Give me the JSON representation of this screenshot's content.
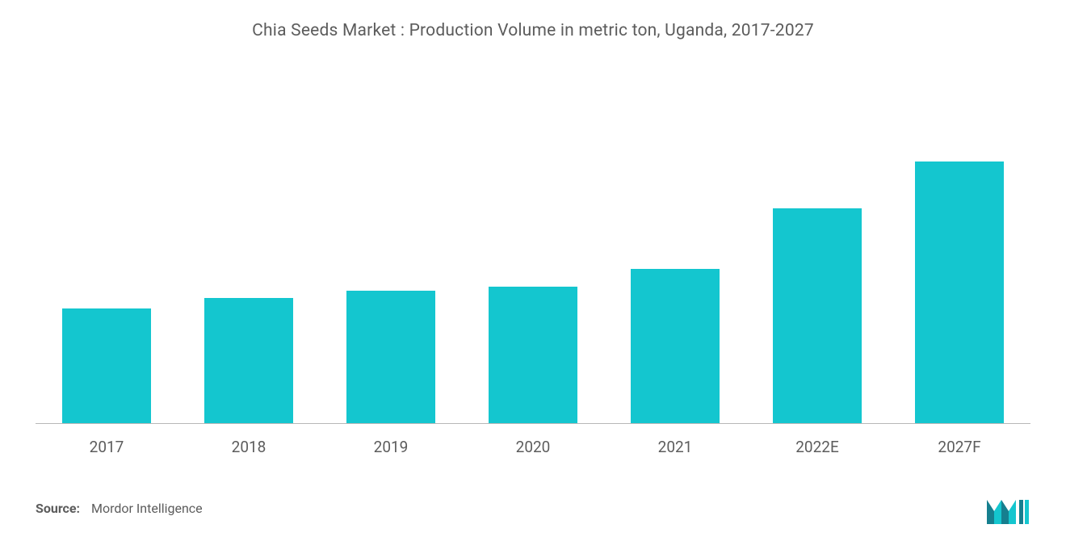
{
  "chart": {
    "type": "bar",
    "title": "Chia Seeds Market : Production Volume in metric ton, Uganda, 2017-2027",
    "title_fontsize": 21,
    "title_color": "#5c5c5c",
    "categories": [
      "2017",
      "2018",
      "2019",
      "2020",
      "2021",
      "2022E",
      "2027F"
    ],
    "values": [
      32,
      35,
      37,
      38,
      43,
      60,
      73
    ],
    "ylim": [
      0,
      100
    ],
    "bar_color": "#14c6cf",
    "bar_width_pct": 62,
    "background_color": "#ffffff",
    "baseline_color": "#b8b8b8",
    "xlabel_fontsize": 19,
    "xlabel_color": "#5c5c5c"
  },
  "source": {
    "label": "Source:",
    "text": "Mordor Intelligence",
    "fontsize": 16,
    "color": "#5c5c5c"
  },
  "logo": {
    "primary_color": "#167f8f",
    "secondary_color": "#14c6cf"
  }
}
